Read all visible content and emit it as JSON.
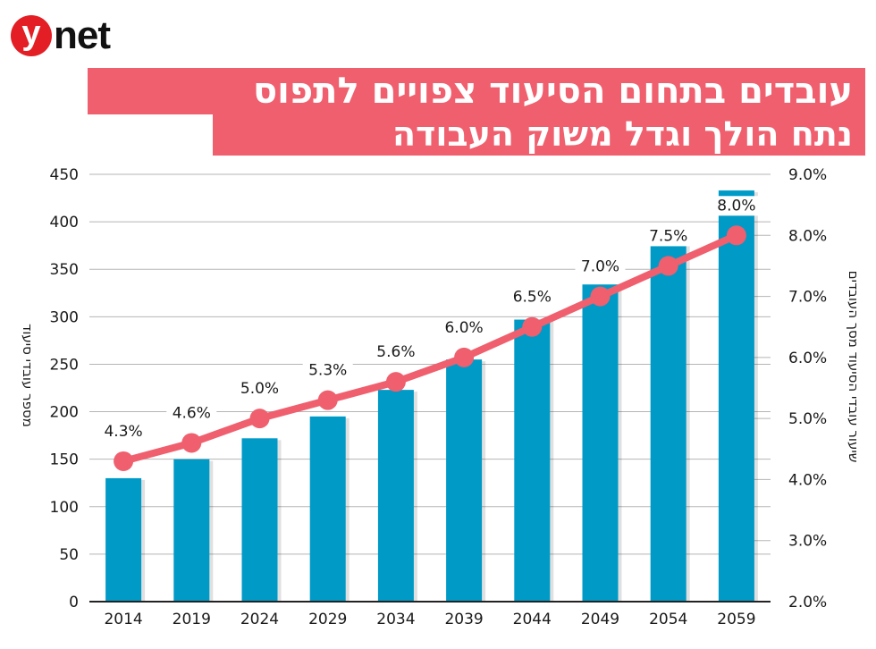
{
  "brand": {
    "logo_letter": "y",
    "logo_text": "net",
    "logo_color": "#E31E24"
  },
  "title": {
    "line1": "עובדים בתחום הסיעוד צפויים לתפוס",
    "line2": "נתח הולך וגדל משוק העבודה",
    "background_color": "#EF5F6E"
  },
  "chart_data": {
    "type": "bar+line",
    "title": "עובדים בתחום הסיעוד צפויים לתפוס נתח הולך וגדל משוק העבודה",
    "categories": [
      "2014",
      "2019",
      "2024",
      "2029",
      "2034",
      "2039",
      "2044",
      "2049",
      "2054",
      "2059"
    ],
    "series": [
      {
        "name": "מספר עובדי סיעוד",
        "type": "bar",
        "axis": "left",
        "color": "#009AC7",
        "values": [
          130,
          150,
          172,
          195,
          223,
          255,
          297,
          334,
          380,
          433
        ]
      },
      {
        "name": "שיעור עובדי הסיעוד מסך העובדים",
        "type": "line",
        "axis": "right",
        "color": "#EF5F6E",
        "values": [
          4.3,
          4.6,
          5.0,
          5.3,
          5.6,
          6.0,
          6.5,
          7.0,
          7.5,
          8.0
        ],
        "labels": [
          "4.3%",
          "4.6%",
          "5.0%",
          "5.3%",
          "5.6%",
          "6.0%",
          "6.5%",
          "7.0%",
          "7.5%",
          "8.0%"
        ]
      }
    ],
    "ylabel_left": "מספר עובדי סיעוד",
    "ylabel_right": "שיעור עובדי הסיעוד מסך העובדים",
    "xlabel": "",
    "ylim_left": [
      0,
      450
    ],
    "yticks_left": [
      "0",
      "50",
      "100",
      "150",
      "200",
      "250",
      "300",
      "350",
      "400",
      "450"
    ],
    "ylim_right": [
      2.0,
      9.0
    ],
    "yticks_right": [
      "2.0%",
      "3.0%",
      "4.0%",
      "5.0%",
      "6.0%",
      "7.0%",
      "8.0%",
      "9.0%"
    ],
    "grid": true,
    "legend": "none"
  }
}
